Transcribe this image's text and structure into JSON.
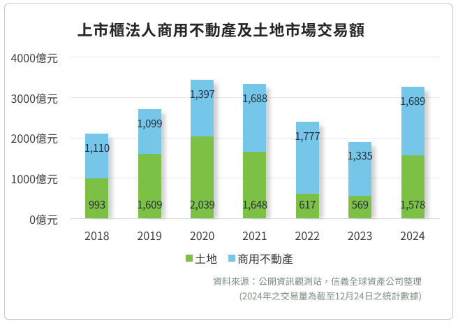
{
  "chart_data": {
    "type": "bar",
    "variant": "stacked",
    "title": "上市櫃法人商用不動產及土地市場交易額",
    "categories": [
      "2018",
      "2019",
      "2020",
      "2021",
      "2022",
      "2023",
      "2024"
    ],
    "series": [
      {
        "name": "土地",
        "color": "#7cc145",
        "values": [
          993,
          1609,
          2039,
          1648,
          617,
          569,
          1578
        ]
      },
      {
        "name": "商用不動產",
        "color": "#76c6e9",
        "values": [
          1110,
          1099,
          1397,
          1688,
          1777,
          1335,
          1689
        ]
      }
    ],
    "ylabel": "",
    "xlabel": "",
    "y_axis": {
      "ticks": [
        0,
        1000,
        2000,
        3000,
        4000
      ],
      "unit_suffix": "億元",
      "ylim": [
        0,
        4000
      ]
    },
    "grid": "horizontal",
    "legend_position": "bottom",
    "data_labels": "inside"
  },
  "source_note": {
    "line1": "資料來源：公開資訊觀測站，信義全球資產公司整理",
    "line2": "(2024年之交易量為截至12月24日之統計數據)"
  },
  "colors": {
    "land_green": "#7cc145",
    "commercial_blue": "#76c6e9",
    "gridline": "#e7e7e7",
    "axis_line": "#d8d8d8",
    "text_dark": "#262626",
    "axis_text": "#3f3f3f",
    "data_label_text": "#26313e",
    "source_text": "#7d9186",
    "frame_border": "#c9c9c9"
  }
}
